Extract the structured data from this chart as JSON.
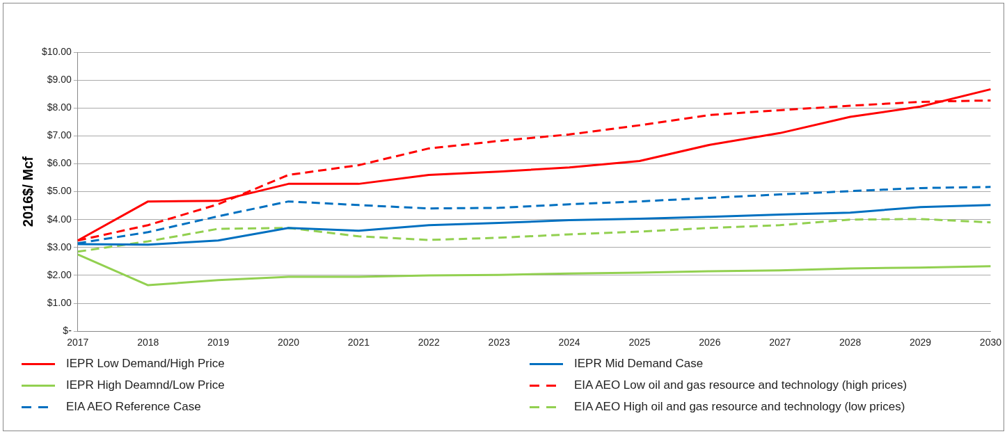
{
  "chart_data": {
    "type": "line",
    "ylabel": "2016$/ Mcf",
    "categories": [
      "2017",
      "2018",
      "2019",
      "2020",
      "2021",
      "2022",
      "2023",
      "2024",
      "2025",
      "2026",
      "2027",
      "2028",
      "2029",
      "2030"
    ],
    "series": [
      {
        "name": "IEPR Low Demand/High Price",
        "color": "#ff0000",
        "line_style": "solid",
        "values": [
          3.25,
          4.65,
          4.67,
          5.28,
          5.28,
          5.6,
          5.72,
          5.87,
          6.1,
          6.68,
          7.1,
          7.68,
          8.05,
          8.67
        ]
      },
      {
        "name": "IEPR Mid Demand Case",
        "color": "#0070c0",
        "line_style": "solid",
        "values": [
          3.12,
          3.1,
          3.25,
          3.7,
          3.6,
          3.8,
          3.88,
          3.98,
          4.03,
          4.1,
          4.18,
          4.25,
          4.45,
          4.52
        ]
      },
      {
        "name": "IEPR High Deamnd/Low Price",
        "color": "#92d050",
        "line_style": "solid",
        "values": [
          2.75,
          1.65,
          1.83,
          1.95,
          1.95,
          2.0,
          2.02,
          2.07,
          2.1,
          2.15,
          2.18,
          2.25,
          2.28,
          2.33
        ]
      },
      {
        "name": "EIA AEO Low oil and gas resource and technology (high prices)",
        "color": "#ff0000",
        "line_style": "dashed",
        "values": [
          3.25,
          3.8,
          4.55,
          5.6,
          5.95,
          6.55,
          6.82,
          7.05,
          7.38,
          7.75,
          7.92,
          8.08,
          8.22,
          8.27
        ]
      },
      {
        "name": "EIA AEO Reference Case",
        "color": "#0070c0",
        "line_style": "dashed",
        "values": [
          3.15,
          3.55,
          4.12,
          4.65,
          4.52,
          4.4,
          4.42,
          4.55,
          4.65,
          4.78,
          4.9,
          5.02,
          5.13,
          5.17
        ]
      },
      {
        "name": "EIA  AEO High oil and gas resource and technology (low prices)",
        "color": "#92d050",
        "line_style": "dashed",
        "values": [
          2.85,
          3.22,
          3.67,
          3.7,
          3.4,
          3.27,
          3.35,
          3.47,
          3.57,
          3.7,
          3.8,
          4.0,
          4.02,
          3.9
        ]
      }
    ],
    "ylim": [
      0,
      10
    ],
    "yticks": [
      {
        "value": 0,
        "label": "$-"
      },
      {
        "value": 1,
        "label": "$1.00"
      },
      {
        "value": 2,
        "label": "$2.00"
      },
      {
        "value": 3,
        "label": "$3.00"
      },
      {
        "value": 4,
        "label": "$4.00"
      },
      {
        "value": 5,
        "label": "$5.00"
      },
      {
        "value": 6,
        "label": "$6.00"
      },
      {
        "value": 7,
        "label": "$7.00"
      },
      {
        "value": 8,
        "label": "$8.00"
      },
      {
        "value": 9,
        "label": "$9.00"
      },
      {
        "value": 10,
        "label": "$10.00"
      }
    ],
    "grid": "y",
    "legend": "bottom",
    "marker": "none"
  }
}
